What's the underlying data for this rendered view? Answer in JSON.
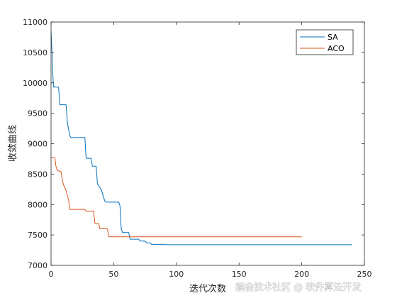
{
  "watermark": "掘金技术社区 @ 软件算法开发",
  "chart_data": {
    "type": "line",
    "title": "",
    "xlabel": "迭代次数",
    "ylabel": "收敛曲线",
    "xlim": [
      0,
      250
    ],
    "ylim": [
      7000,
      11000
    ],
    "xticks": [
      0,
      50,
      100,
      150,
      200,
      250
    ],
    "yticks": [
      7000,
      7500,
      8000,
      8500,
      9000,
      9500,
      10000,
      10500,
      11000
    ],
    "grid": false,
    "box": true,
    "legend_position": "top-right",
    "series": [
      {
        "name": "SA",
        "color": "#0072BD",
        "x": [
          0,
          0.8,
          1.5,
          2,
          3,
          6,
          7,
          12,
          13,
          15,
          16,
          27,
          28,
          32,
          33,
          36,
          37,
          40,
          41,
          43,
          44,
          54,
          55,
          56,
          57,
          62,
          63,
          70,
          71,
          75,
          76,
          79,
          80,
          90,
          91,
          240
        ],
        "y": [
          10850,
          10480,
          10100,
          9930,
          9930,
          9930,
          9640,
          9640,
          9350,
          9130,
          9100,
          9100,
          8760,
          8760,
          8630,
          8630,
          8340,
          8250,
          8180,
          8050,
          8040,
          8040,
          7980,
          7600,
          7540,
          7540,
          7430,
          7430,
          7400,
          7400,
          7370,
          7370,
          7345,
          7345,
          7340,
          7340
        ]
      },
      {
        "name": "ACO",
        "color": "#D95319",
        "x": [
          0,
          3,
          4,
          5,
          8,
          9,
          10,
          12,
          13,
          14,
          15,
          27,
          28,
          34,
          35,
          38,
          39,
          45,
          46,
          200
        ],
        "y": [
          8770,
          8770,
          8620,
          8560,
          8540,
          8400,
          8320,
          8230,
          8150,
          8080,
          7920,
          7920,
          7890,
          7890,
          7690,
          7690,
          7600,
          7600,
          7470,
          7470
        ]
      }
    ]
  }
}
